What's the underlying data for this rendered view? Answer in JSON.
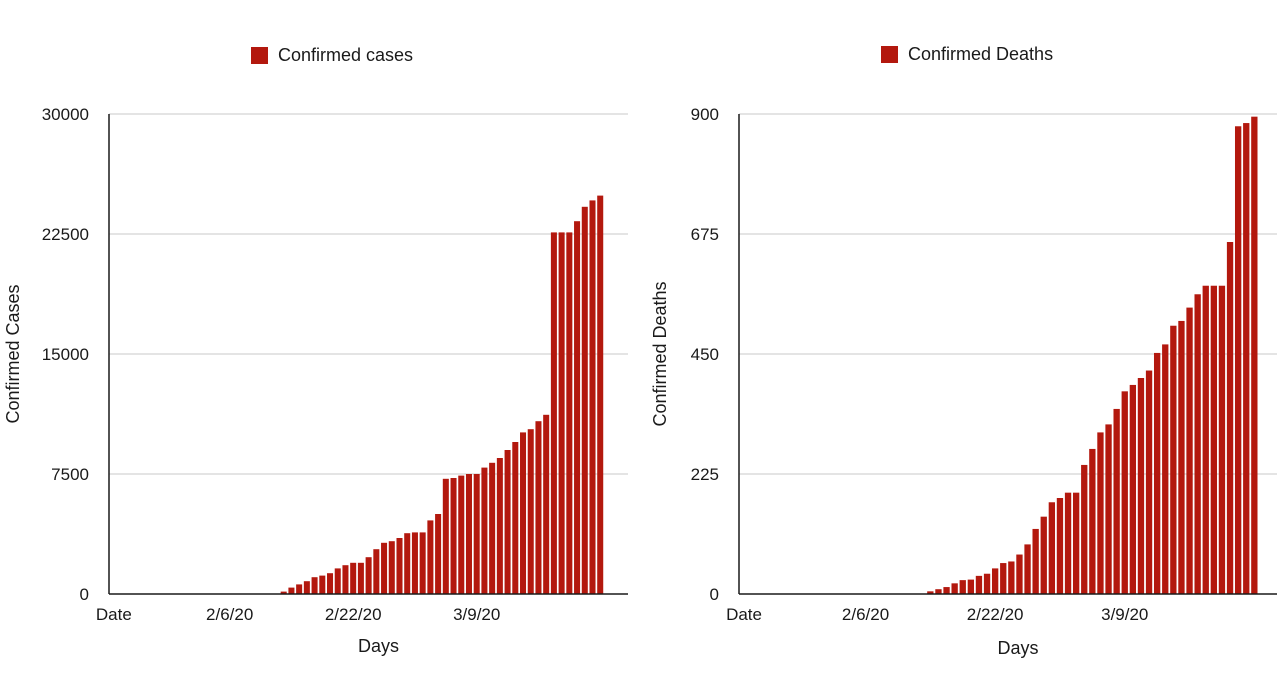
{
  "chart_data": [
    {
      "type": "bar",
      "legend": "Confirmed cases",
      "color": "#b3180e",
      "ylabel": "Confirmed Cases",
      "xlabel": "Days",
      "ylim": [
        0,
        30000
      ],
      "yticks": [
        "0",
        "7500",
        "15000",
        "22500",
        "30000"
      ],
      "xticks": [
        {
          "label": "Date",
          "index": 0
        },
        {
          "label": "2/6/20",
          "index": 15
        },
        {
          "label": "2/22/20",
          "index": 31
        },
        {
          "label": "3/9/20",
          "index": 47
        }
      ],
      "grid": true,
      "series": [
        {
          "values": [
            0,
            0,
            0,
            0,
            0,
            0,
            0,
            0,
            0,
            0,
            0,
            0,
            0,
            0,
            0,
            0,
            0,
            0,
            0,
            0,
            0,
            0,
            150,
            400,
            600,
            800,
            1050,
            1150,
            1300,
            1600,
            1800,
            1950,
            1950,
            2300,
            2800,
            3200,
            3300,
            3500,
            3800,
            3850,
            3850,
            4600,
            5000,
            7200,
            7250,
            7400,
            7500,
            7500,
            7900,
            8200,
            8500,
            9000,
            9500,
            10100,
            10300,
            10800,
            11200,
            22600,
            22600,
            22600,
            23300,
            24200,
            24600,
            24900
          ]
        }
      ]
    },
    {
      "type": "bar",
      "legend": "Confirmed Deaths",
      "color": "#b3180e",
      "ylabel": "Confirmed Deaths",
      "xlabel": "Days",
      "ylim": [
        0,
        900
      ],
      "yticks": [
        "0",
        "225",
        "450",
        "675",
        "900"
      ],
      "xticks": [
        {
          "label": "Date",
          "index": 0
        },
        {
          "label": "2/6/20",
          "index": 15
        },
        {
          "label": "2/22/20",
          "index": 31
        },
        {
          "label": "3/9/20",
          "index": 47
        }
      ],
      "grid": true,
      "series": [
        {
          "values": [
            0,
            0,
            0,
            0,
            0,
            0,
            0,
            0,
            0,
            0,
            0,
            0,
            0,
            0,
            0,
            0,
            0,
            0,
            0,
            0,
            0,
            0,
            0,
            5,
            9,
            13,
            20,
            26,
            27,
            34,
            38,
            48,
            58,
            61,
            74,
            93,
            122,
            145,
            172,
            180,
            190,
            190,
            242,
            272,
            303,
            318,
            347,
            380,
            392,
            405,
            419,
            452,
            468,
            503,
            512,
            537,
            562,
            578,
            578,
            578,
            660,
            877,
            883,
            895
          ]
        }
      ]
    }
  ]
}
